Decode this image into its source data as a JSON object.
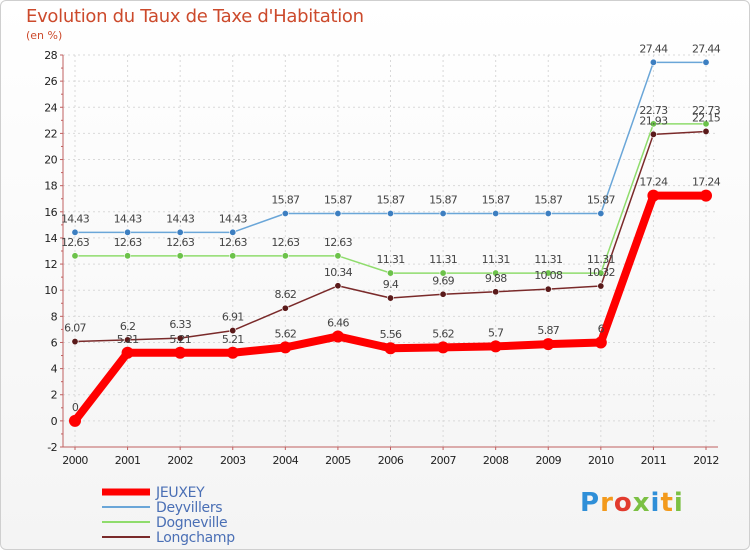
{
  "chart_data": {
    "type": "line",
    "title": "Evolution du Taux de Taxe d'Habitation",
    "subtitle": "(en %)",
    "xlabel": "",
    "ylabel": "",
    "ylim": [
      -2,
      28
    ],
    "yticks": [
      -2,
      0,
      2,
      4,
      6,
      8,
      10,
      12,
      14,
      16,
      18,
      20,
      22,
      24,
      26,
      28
    ],
    "grid": true,
    "legend": "bottom-left",
    "x": [
      "2000",
      "2001",
      "2002",
      "2003",
      "2004",
      "2005",
      "2006",
      "2007",
      "2008",
      "2009",
      "2010",
      "2011",
      "2012"
    ],
    "series": [
      {
        "name": "JEUXEY",
        "color": "#ff0000",
        "values": [
          0,
          5.21,
          5.21,
          5.21,
          5.62,
          6.46,
          5.56,
          5.62,
          5.7,
          5.87,
          6,
          17.24,
          17.24
        ],
        "labels": [
          "0",
          "5.21",
          "5.21",
          "5.21",
          "5.62",
          "6.46",
          "5.56",
          "5.62",
          "5.7",
          "5.87",
          "6",
          "17.24",
          "17.24"
        ]
      },
      {
        "name": "Deyvillers",
        "color": "#6aa6d8",
        "marker_color": "#3d7fc1",
        "values": [
          14.43,
          14.43,
          14.43,
          14.43,
          15.87,
          15.87,
          15.87,
          15.87,
          15.87,
          15.87,
          15.87,
          27.44,
          27.44
        ],
        "labels": [
          "14.43",
          "14.43",
          "14.43",
          "14.43",
          "15.87",
          "15.87",
          "15.87",
          "15.87",
          "15.87",
          "15.87",
          "15.87",
          "27.44",
          "27.44"
        ]
      },
      {
        "name": "Dogneville",
        "color": "#8fdc6c",
        "marker_color": "#6cc24a",
        "values": [
          12.63,
          12.63,
          12.63,
          12.63,
          12.63,
          12.63,
          11.31,
          11.31,
          11.31,
          11.31,
          11.31,
          22.73,
          22.73
        ],
        "labels": [
          "12.63",
          "12.63",
          "12.63",
          "12.63",
          "12.63",
          "12.63",
          "11.31",
          "11.31",
          "11.31",
          "11.31",
          "11.31",
          "22.73",
          "22.73"
        ]
      },
      {
        "name": "Longchamp",
        "color": "#7a2a2a",
        "marker_color": "#5a1a1a",
        "values": [
          6.07,
          6.2,
          6.33,
          6.91,
          8.62,
          10.34,
          9.4,
          9.69,
          9.88,
          10.08,
          10.32,
          21.93,
          22.15
        ],
        "labels": [
          "6.07",
          "6.2",
          "6.33",
          "6.91",
          "8.62",
          "10.34",
          "9.4",
          "9.69",
          "9.88",
          "10.08",
          "10.32",
          "21.93",
          "22.15"
        ]
      }
    ]
  },
  "logo": {
    "letters": [
      "P",
      "r",
      "o",
      "x",
      "i",
      "t",
      "i"
    ],
    "colors": [
      "#2f8fd8",
      "#f39a1c",
      "#e23b2e",
      "#7bc043",
      "#2f8fd8",
      "#f39a1c",
      "#7bc043"
    ]
  }
}
